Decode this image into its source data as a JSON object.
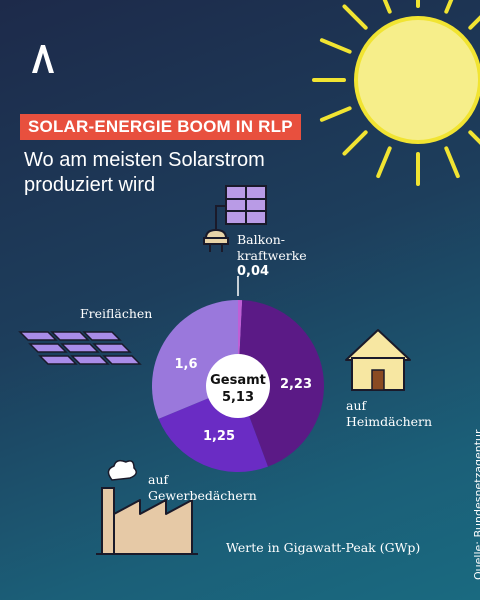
{
  "header": {
    "kicker": "SOLAR-ENERGIE BOOM IN RLP",
    "headline": "Wo am meisten Solarstrom\n produziert wird"
  },
  "colors": {
    "kicker_bg": "#e8503e",
    "sun": "#f6ee8a",
    "sun_rays": "#f1e432"
  },
  "icons": [
    "brand-logo-icon",
    "sun-icon",
    "balcony-solar-plug-icon",
    "solar-field-icon",
    "house-icon",
    "factory-icon"
  ],
  "chart_data": {
    "type": "pie",
    "center_label": "Gesamt",
    "total": 5.13,
    "total_display": "5,13",
    "slices": [
      {
        "name": "Balkon-kraftwerke",
        "value": 0.04,
        "display": "0,04",
        "color": "#c05fd6"
      },
      {
        "name": "auf Heimdächern",
        "value": 2.23,
        "display": "2,23",
        "color": "#5b1a86"
      },
      {
        "name": "auf Gewerbedächern",
        "value": 1.25,
        "display": "1,25",
        "color": "#6a2cc4"
      },
      {
        "name": "Freiflächen",
        "value": 1.6,
        "display": "1,6",
        "color": "#9a78dc"
      }
    ]
  },
  "labels": {
    "balkon": {
      "line1": "Balkon-",
      "line2": "kraftwerke",
      "value": "0,04"
    },
    "freiflaechen": "Freiflächen",
    "heim": {
      "line1": "auf",
      "line2": "Heimdächern"
    },
    "gewerbe": {
      "line1": "auf",
      "line2": "Gewerbedächern"
    }
  },
  "footer": {
    "unit_note": "Werte in Gigawatt-Peak (GWp)",
    "source": "Quelle: Bundesnetzagentur"
  }
}
